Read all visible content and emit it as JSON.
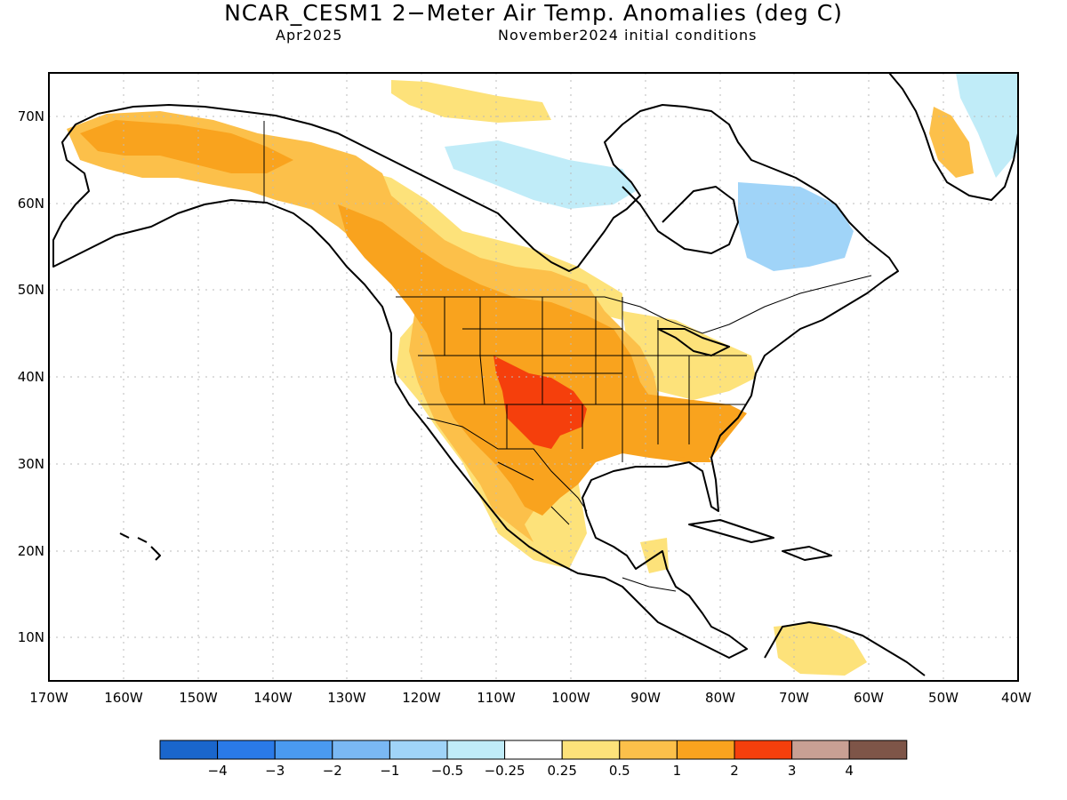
{
  "title": "NCAR_CESM1 2−Meter Air Temp. Anomalies (deg C)",
  "subtitle_left": "Apr2025",
  "subtitle_right": "November2024 initial conditions",
  "lat_labels": [
    "70N",
    "60N",
    "50N",
    "40N",
    "30N",
    "20N",
    "10N"
  ],
  "lon_labels": [
    "170W",
    "160W",
    "150W",
    "140W",
    "130W",
    "120W",
    "110W",
    "100W",
    "90W",
    "80W",
    "70W",
    "60W",
    "50W",
    "40W"
  ],
  "colorbar": {
    "colors": [
      "#1a66cc",
      "#2a7ae8",
      "#4a9af0",
      "#7ab8f4",
      "#a0d4f8",
      "#c0ecf8",
      "#ffffff",
      "#fde27a",
      "#fcc04a",
      "#f9a31e",
      "#f53f0c",
      "#c8a094",
      "#7e5548"
    ],
    "labels": [
      "−4",
      "−3",
      "−2",
      "−1",
      "−0.5",
      "−0.25",
      "0.25",
      "0.5",
      "1",
      "2",
      "3",
      "4"
    ]
  }
}
